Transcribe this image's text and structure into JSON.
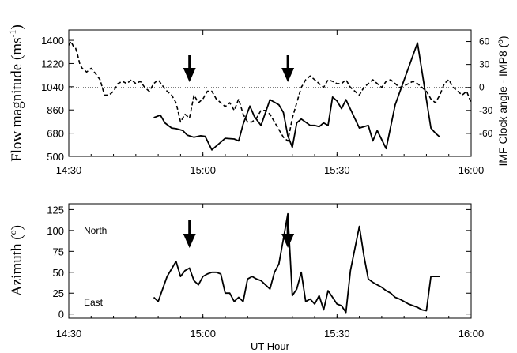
{
  "chart_data": [
    {
      "type": "line",
      "panel": "top",
      "ylabel": "Flow magnitude (ms",
      "ylabel_sup": "-1",
      "ylabel_close": ")",
      "y2label": "IMF Clock angle - IMP8 (",
      "y2label_sup": "o",
      "y2label_close": ")",
      "xticks": [
        "14:30",
        "15:00",
        "15:30",
        "16:00"
      ],
      "xlim": [
        0,
        90
      ],
      "ylim": [
        500,
        1480
      ],
      "yticks": [
        500,
        680,
        860,
        1040,
        1220,
        1400
      ],
      "y2lim": [
        -90,
        75
      ],
      "y2ticks": [
        -60,
        -30,
        0,
        30,
        60
      ],
      "y2_reference_line": 0,
      "arrows_x": [
        27,
        49
      ],
      "series": [
        {
          "axis": "left",
          "style": "solid",
          "x": [
            19,
            20.5,
            21.5,
            23,
            24,
            25.5,
            26.5,
            28,
            29.5,
            30.5,
            32,
            34,
            35,
            37,
            38,
            39,
            40.5,
            41.5,
            43,
            45,
            47,
            48,
            49,
            50,
            51,
            52,
            54,
            55,
            56,
            57,
            58,
            59,
            60,
            61,
            62,
            65,
            67,
            68,
            69,
            71,
            73,
            78,
            81,
            82,
            83
          ],
          "y": [
            800,
            820,
            760,
            720,
            715,
            700,
            665,
            648,
            660,
            655,
            550,
            610,
            640,
            635,
            620,
            750,
            890,
            810,
            740,
            940,
            900,
            840,
            660,
            570,
            760,
            790,
            740,
            740,
            730,
            760,
            740,
            960,
            930,
            870,
            940,
            720,
            740,
            620,
            700,
            560,
            900,
            1380,
            720,
            680,
            650
          ]
        },
        {
          "axis": "right",
          "style": "dashed",
          "x": [
            0,
            0.5,
            1,
            1.5,
            2,
            2.5,
            3,
            4,
            5,
            6,
            7,
            7.5,
            8,
            9,
            10,
            11,
            12,
            13,
            14,
            15,
            16,
            17,
            18,
            19,
            20,
            21,
            22,
            23,
            24,
            25,
            26,
            27,
            28,
            29,
            30,
            31,
            32,
            33,
            34,
            35,
            36,
            37,
            38,
            39,
            40,
            41,
            42,
            43,
            44,
            45,
            46,
            47,
            48,
            49,
            50,
            51,
            52,
            53,
            54,
            55,
            56,
            57,
            58,
            59,
            60,
            61,
            62,
            63,
            64,
            65,
            66,
            67,
            68,
            69,
            70,
            71,
            72,
            73,
            74,
            75,
            76,
            77,
            78,
            79,
            80,
            81,
            82,
            83,
            84,
            85,
            86,
            87,
            88,
            89,
            90
          ],
          "y": [
            55,
            60,
            54,
            52,
            42,
            30,
            25,
            20,
            25,
            18,
            10,
            0,
            -10,
            -10,
            -5,
            5,
            8,
            5,
            10,
            5,
            8,
            0,
            -5,
            5,
            10,
            2,
            -5,
            -10,
            -20,
            -45,
            -35,
            -40,
            -10,
            -20,
            -15,
            -5,
            -5,
            -15,
            -20,
            -25,
            -20,
            -30,
            -15,
            -35,
            -45,
            -45,
            -40,
            -30,
            -30,
            -35,
            -45,
            -55,
            -65,
            -70,
            -40,
            -20,
            0,
            10,
            15,
            10,
            5,
            0,
            10,
            8,
            5,
            5,
            10,
            0,
            -5,
            -10,
            0,
            5,
            10,
            5,
            0,
            8,
            10,
            5,
            0,
            2,
            5,
            8,
            5,
            0,
            -5,
            -15,
            -20,
            -10,
            5,
            10,
            0,
            -5,
            -10,
            -5,
            -20
          ]
        }
      ]
    },
    {
      "type": "line",
      "panel": "bottom",
      "ylabel": "Azimuth (",
      "ylabel_sup": "o",
      "ylabel_close": ")",
      "xlabel": "UT Hour",
      "xticks": [
        "14:30",
        "15:00",
        "15:30",
        "16:00"
      ],
      "xlim": [
        0,
        90
      ],
      "ylim": [
        -5,
        132
      ],
      "yticks": [
        0,
        25,
        50,
        75,
        100,
        125
      ],
      "annotations": [
        "North",
        "East"
      ],
      "arrows_x": [
        27,
        49
      ],
      "series": [
        {
          "style": "solid",
          "x": [
            19,
            20,
            22,
            24,
            25,
            26,
            27,
            28,
            29,
            30,
            31,
            32,
            33,
            34,
            35,
            36,
            37,
            38,
            39,
            40,
            41,
            42,
            43,
            44,
            45,
            46,
            47,
            48,
            49,
            50,
            51,
            52,
            53,
            54,
            55,
            56,
            57,
            58,
            59,
            60,
            61,
            62,
            63,
            65,
            66,
            67,
            68,
            69,
            70,
            71,
            72,
            73,
            74,
            75,
            76,
            77,
            78,
            79,
            80,
            81,
            82,
            83
          ],
          "y": [
            20,
            15,
            45,
            63,
            45,
            52,
            55,
            40,
            35,
            45,
            48,
            50,
            50,
            48,
            25,
            25,
            15,
            20,
            15,
            42,
            45,
            42,
            40,
            35,
            30,
            50,
            60,
            90,
            120,
            22,
            30,
            50,
            15,
            18,
            12,
            22,
            5,
            28,
            20,
            12,
            10,
            2,
            52,
            105,
            70,
            42,
            38,
            35,
            32,
            28,
            25,
            20,
            18,
            15,
            12,
            10,
            8,
            5,
            4,
            45,
            45,
            45
          ]
        }
      ]
    }
  ]
}
